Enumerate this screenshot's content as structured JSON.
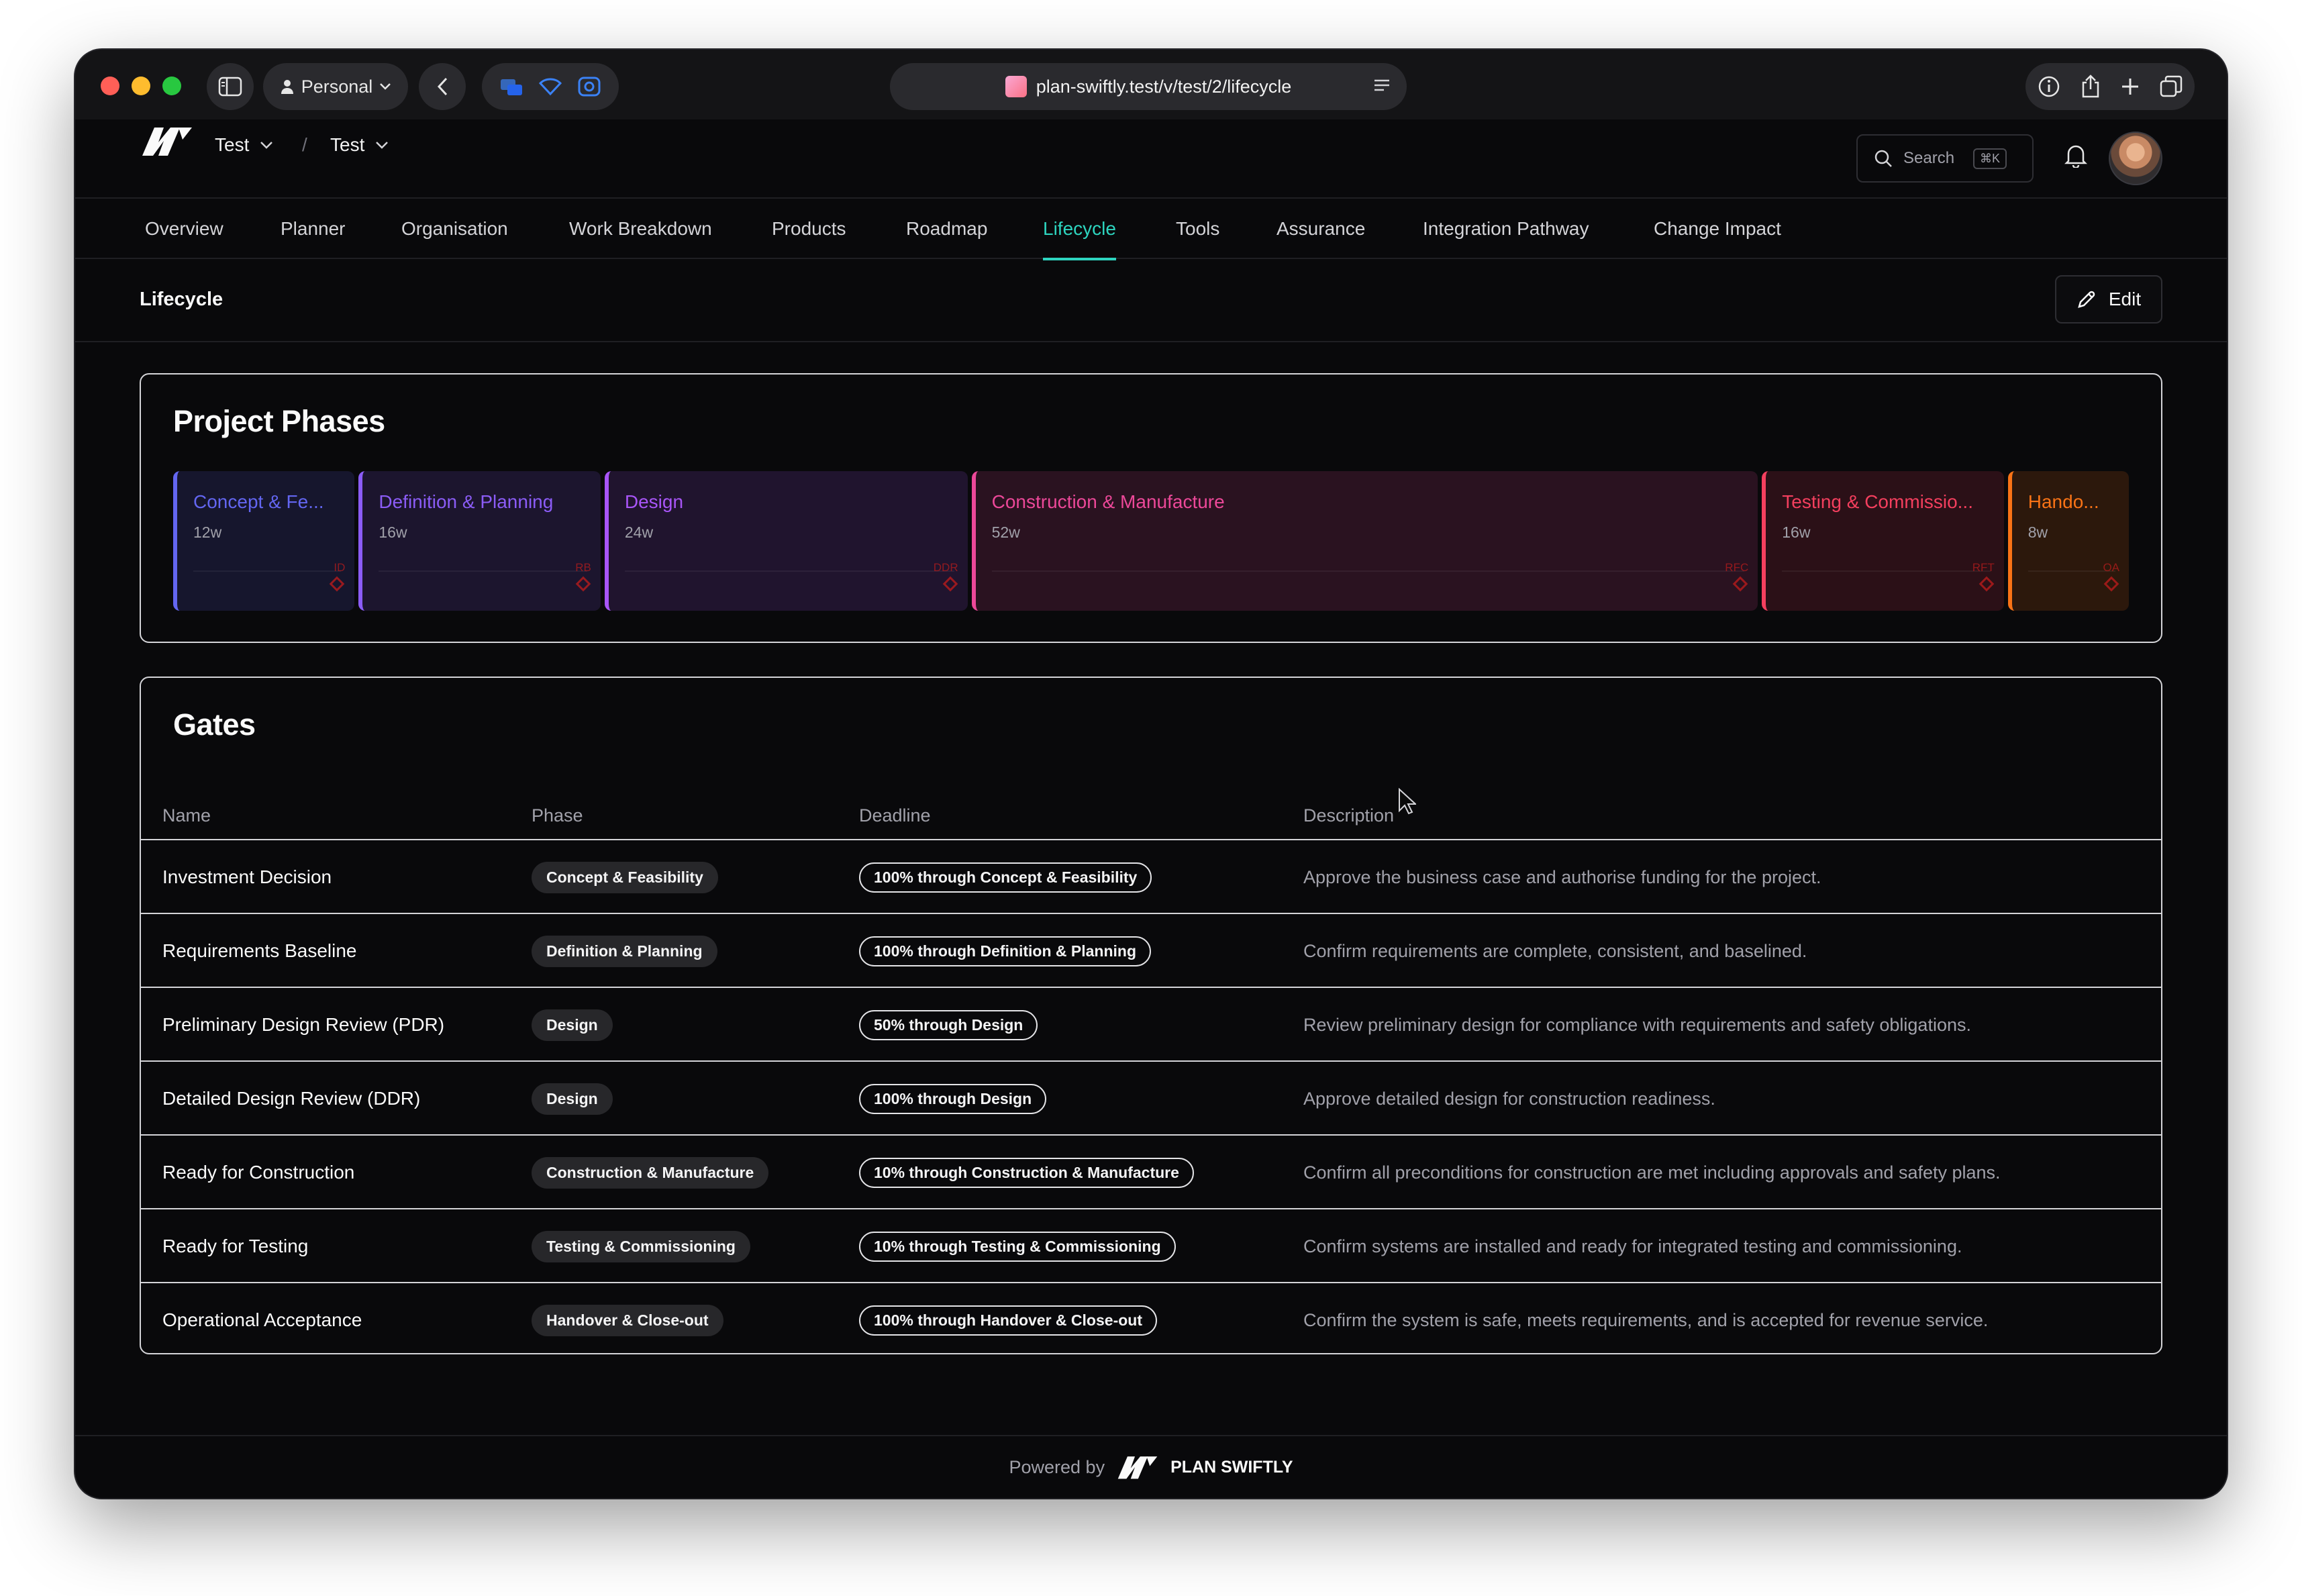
{
  "browser": {
    "profile_label": "Personal",
    "url": "plan-swiftly.test/v/test/2/lifecycle"
  },
  "header": {
    "org_name": "Test",
    "project_name": "Test",
    "breadcrumb_separator": "/",
    "search_label": "Search",
    "search_shortcut": "⌘K"
  },
  "nav": {
    "items": [
      {
        "label": "Overview"
      },
      {
        "label": "Planner"
      },
      {
        "label": "Organisation"
      },
      {
        "label": "Work Breakdown"
      },
      {
        "label": "Products"
      },
      {
        "label": "Roadmap"
      },
      {
        "label": "Lifecycle",
        "active": true
      },
      {
        "label": "Tools"
      },
      {
        "label": "Assurance"
      },
      {
        "label": "Integration Pathway"
      },
      {
        "label": "Change Impact"
      }
    ]
  },
  "page": {
    "title": "Lifecycle",
    "edit_label": "Edit"
  },
  "phases_card": {
    "title": "Project Phases",
    "phases": [
      {
        "name": "Concept & Fe...",
        "duration": "12w",
        "gate": "ID",
        "color": "#6366f1"
      },
      {
        "name": "Definition & Planning",
        "duration": "16w",
        "gate": "RB",
        "color": "#8b5cf6"
      },
      {
        "name": "Design",
        "duration": "24w",
        "gate": "DDR",
        "color": "#a855f7"
      },
      {
        "name": "Construction & Manufacture",
        "duration": "52w",
        "gate": "RFC",
        "color": "#ec4899"
      },
      {
        "name": "Testing & Commissio...",
        "duration": "16w",
        "gate": "RFT",
        "color": "#f43f5e"
      },
      {
        "name": "Hando...",
        "duration": "8w",
        "gate": "OA",
        "color": "#f97316"
      }
    ]
  },
  "gates_card": {
    "title": "Gates",
    "columns": {
      "name": "Name",
      "phase": "Phase",
      "deadline": "Deadline",
      "description": "Description"
    },
    "rows": [
      {
        "name": "Investment Decision",
        "phase": "Concept & Feasibility",
        "deadline": "100% through Concept & Feasibility",
        "description": "Approve the business case and authorise funding for the project."
      },
      {
        "name": "Requirements Baseline",
        "phase": "Definition & Planning",
        "deadline": "100% through Definition & Planning",
        "description": "Confirm requirements are complete, consistent, and baselined."
      },
      {
        "name": "Preliminary Design Review (PDR)",
        "phase": "Design",
        "deadline": "50% through Design",
        "description": "Review preliminary design for compliance with requirements and safety obligations."
      },
      {
        "name": "Detailed Design Review (DDR)",
        "phase": "Design",
        "deadline": "100% through Design",
        "description": "Approve detailed design for construction readiness."
      },
      {
        "name": "Ready for Construction",
        "phase": "Construction & Manufacture",
        "deadline": "10% through Construction & Manufacture",
        "description": "Confirm all preconditions for construction are met including approvals and safety plans."
      },
      {
        "name": "Ready for Testing",
        "phase": "Testing & Commissioning",
        "deadline": "10% through Testing & Commissioning",
        "description": "Confirm systems are installed and ready for integrated testing and commissioning."
      },
      {
        "name": "Operational Acceptance",
        "phase": "Handover & Close-out",
        "deadline": "100% through Handover & Close-out",
        "description": "Confirm the system is safe, meets requirements, and is accepted for revenue service."
      }
    ]
  },
  "footer": {
    "powered_by": "Powered by",
    "brand": "PLAN SWIFTLY"
  },
  "icons": {
    "logo": "plan-swiftly-logo-icon",
    "search": "search-icon",
    "bell": "bell-icon",
    "edit": "pencil-icon"
  }
}
